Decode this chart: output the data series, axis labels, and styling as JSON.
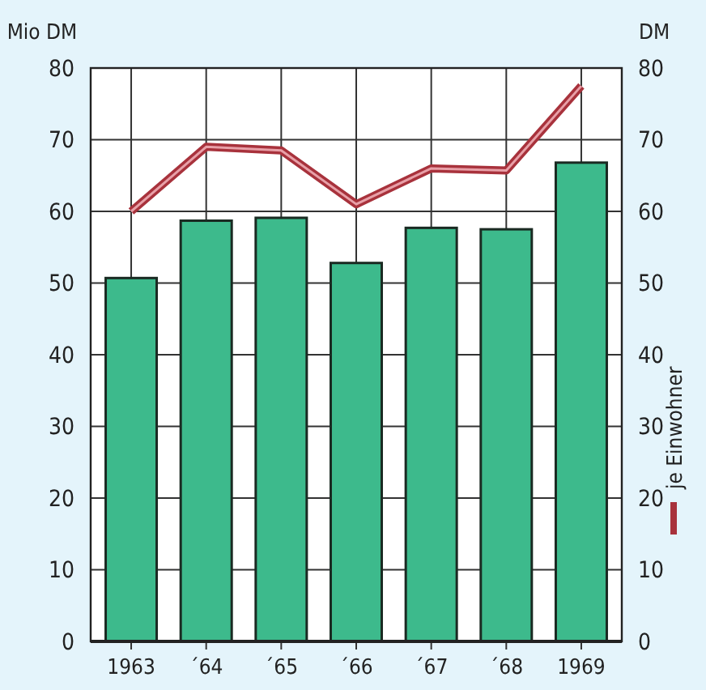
{
  "chart_data": {
    "type": "bar",
    "ylabel": "Mio DM",
    "y2label": "DM",
    "categories": [
      "1963",
      "´64",
      "´65",
      "´66",
      "´67",
      "´68",
      "1969"
    ],
    "series": [
      {
        "color": "#3dba8c",
        "values": [
          50.7,
          58.7,
          59.1,
          52.8,
          57.7,
          57.5,
          66.8
        ]
      },
      {
        "type": "line",
        "name": "je Einwohner",
        "axis": "y2",
        "color": "#a8323c",
        "values": [
          60,
          69,
          68.5,
          61,
          66,
          65.7,
          77.5
        ]
      }
    ],
    "ylim": [
      0,
      80
    ],
    "yticks": [
      0,
      10,
      20,
      30,
      40,
      50,
      60,
      70,
      80
    ],
    "y2lim": [
      0,
      80
    ],
    "y2ticks": [
      0,
      10,
      20,
      30,
      40,
      50,
      60,
      70,
      80
    ],
    "grid": true,
    "legend": "right",
    "marker": "none",
    "line_style": "solid"
  }
}
